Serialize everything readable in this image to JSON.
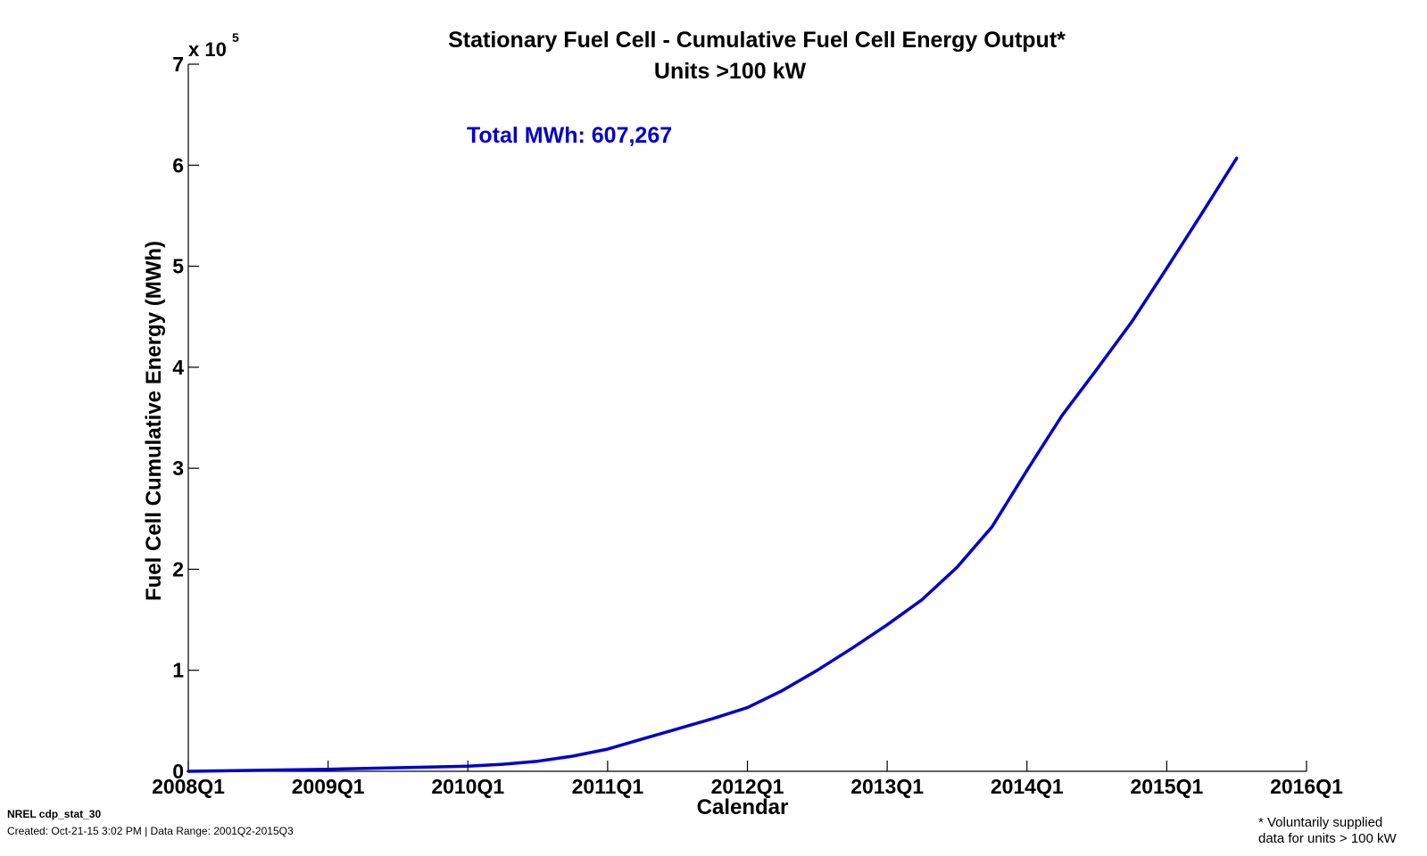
{
  "chart_data": {
    "type": "line",
    "title": "Stationary Fuel Cell - Cumulative Fuel Cell Energy Output*",
    "subtitle": "Units >100 kW",
    "xlabel": "Calendar",
    "ylabel": "Fuel Cell Cumulative Energy (MWh)",
    "y_multiplier": {
      "prefix": "x 10",
      "exponent": "5"
    },
    "annotation": "Total MWh:  607,267",
    "x_ticks": [
      "2008Q1",
      "2009Q1",
      "2010Q1",
      "2011Q1",
      "2012Q1",
      "2013Q1",
      "2014Q1",
      "2015Q1",
      "2016Q1"
    ],
    "y_ticks": [
      "0",
      "1",
      "2",
      "3",
      "4",
      "5",
      "6",
      "7"
    ],
    "xlim": [
      2008,
      2016
    ],
    "ylim": [
      0,
      7
    ],
    "grid": false,
    "series": [
      {
        "color": "#0000CC",
        "x": [
          2008.0,
          2008.5,
          2009.0,
          2009.5,
          2010.0,
          2010.25,
          2010.5,
          2010.75,
          2011.0,
          2011.25,
          2011.5,
          2011.75,
          2012.0,
          2012.25,
          2012.5,
          2012.75,
          2013.0,
          2013.25,
          2013.5,
          2013.75,
          2014.0,
          2014.25,
          2014.5,
          2014.75,
          2015.0,
          2015.25,
          2015.5
        ],
        "y": [
          0.0,
          0.01,
          0.02,
          0.035,
          0.05,
          0.07,
          0.1,
          0.15,
          0.22,
          0.32,
          0.42,
          0.52,
          0.63,
          0.8,
          1.0,
          1.22,
          1.45,
          1.7,
          2.02,
          2.42,
          2.98,
          3.52,
          3.98,
          4.45,
          4.98,
          5.52,
          6.07
        ]
      }
    ]
  },
  "footer": {
    "source": "NREL cdp_stat_30",
    "created": "Created: Oct-21-15  3:02 PM | Data Range: 2001Q2-2015Q3"
  },
  "footnote": {
    "line1": "* Voluntarily supplied",
    "line2": "data for units > 100 kW"
  }
}
